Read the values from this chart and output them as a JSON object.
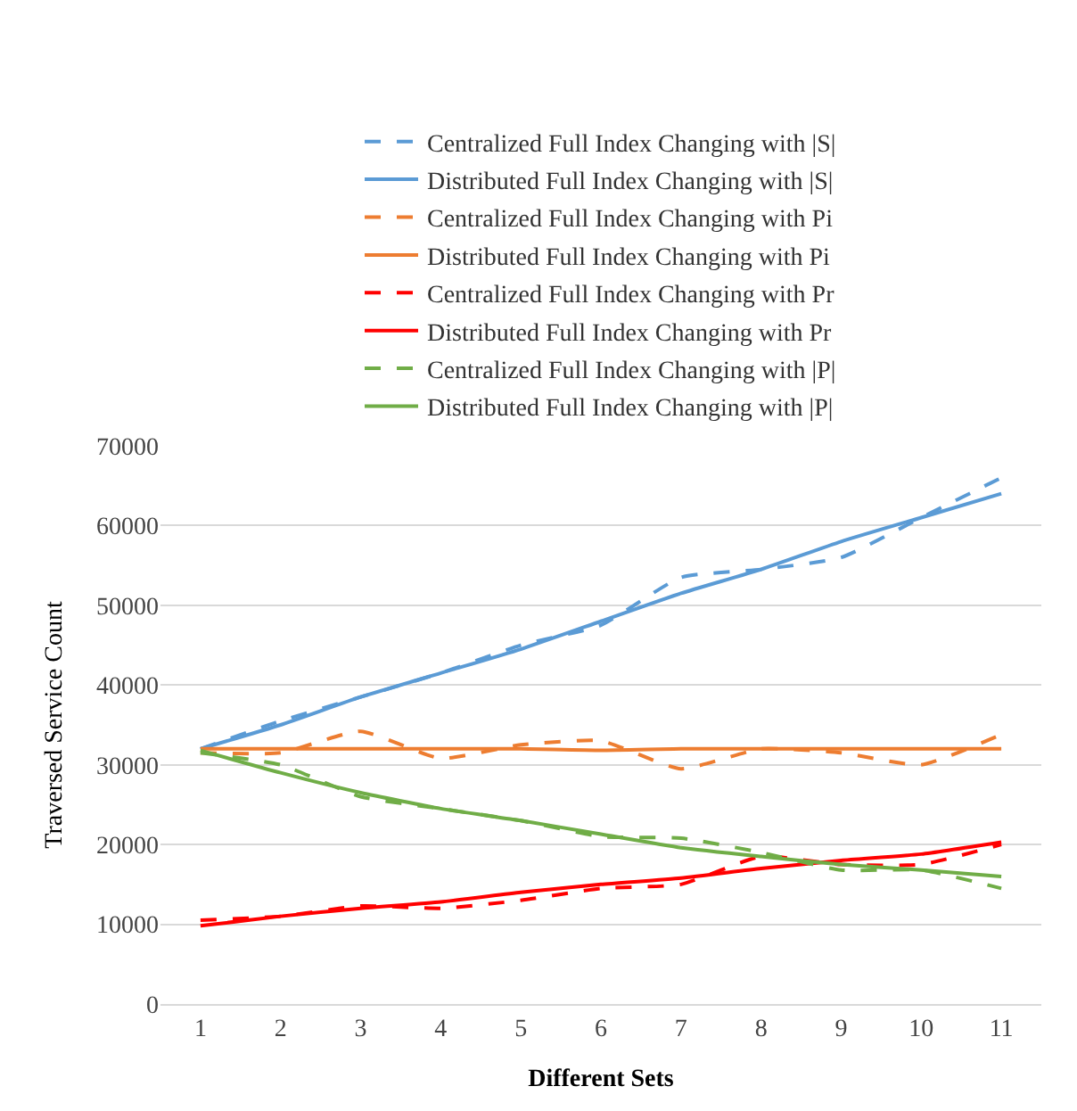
{
  "chart_data": {
    "type": "line",
    "xlabel": "Different Sets",
    "ylabel": "Traversed Service Count",
    "categories": [
      "1",
      "2",
      "3",
      "4",
      "5",
      "6",
      "7",
      "8",
      "9",
      "10",
      "11"
    ],
    "ylim": [
      0,
      70000
    ],
    "yticks": [
      0,
      10000,
      20000,
      30000,
      40000,
      50000,
      60000,
      70000
    ],
    "grid": "y",
    "legend": "top",
    "marker": "none",
    "series": [
      {
        "name": "Centralized Full Index Changing with |S|",
        "color": "#5b9bd5",
        "line_style": "dashed",
        "values": [
          32000,
          35500,
          38500,
          41500,
          45000,
          47500,
          53500,
          54500,
          56000,
          61000,
          66000
        ]
      },
      {
        "name": "Distributed Full Index Changing with |S|",
        "color": "#5b9bd5",
        "line_style": "solid",
        "values": [
          32000,
          35000,
          38500,
          41500,
          44500,
          48000,
          51500,
          54500,
          58000,
          61000,
          64000
        ]
      },
      {
        "name": "Centralized Full Index Changing with Pi",
        "color": "#ed7d31",
        "line_style": "dashed",
        "values": [
          31500,
          31500,
          34200,
          30800,
          32500,
          33000,
          29500,
          32000,
          31500,
          30000,
          33800
        ]
      },
      {
        "name": "Distributed Full Index Changing with Pi",
        "color": "#ed7d31",
        "line_style": "solid",
        "values": [
          32000,
          32000,
          32000,
          32000,
          32000,
          31800,
          32000,
          32000,
          32000,
          32000,
          32000
        ]
      },
      {
        "name": "Centralized Full Index Changing with Pr",
        "color": "#ff0000",
        "line_style": "dashed",
        "values": [
          10500,
          11000,
          12300,
          12000,
          13000,
          14500,
          15000,
          18500,
          17500,
          17500,
          20000
        ]
      },
      {
        "name": "Distributed Full Index Changing with Pr",
        "color": "#ff0000",
        "line_style": "solid",
        "values": [
          9800,
          11000,
          12000,
          12800,
          14000,
          15000,
          15800,
          17000,
          18000,
          18800,
          20300
        ]
      },
      {
        "name": "Centralized Full Index Changing with |P|",
        "color": "#70ad47",
        "line_style": "dashed",
        "values": [
          31500,
          30000,
          26000,
          24500,
          23000,
          21000,
          20800,
          19000,
          16800,
          16800,
          14500
        ]
      },
      {
        "name": "Distributed Full Index Changing with |P|",
        "color": "#70ad47",
        "line_style": "solid",
        "values": [
          31800,
          29000,
          26500,
          24500,
          23000,
          21300,
          19600,
          18500,
          17500,
          16800,
          16000
        ]
      }
    ]
  }
}
